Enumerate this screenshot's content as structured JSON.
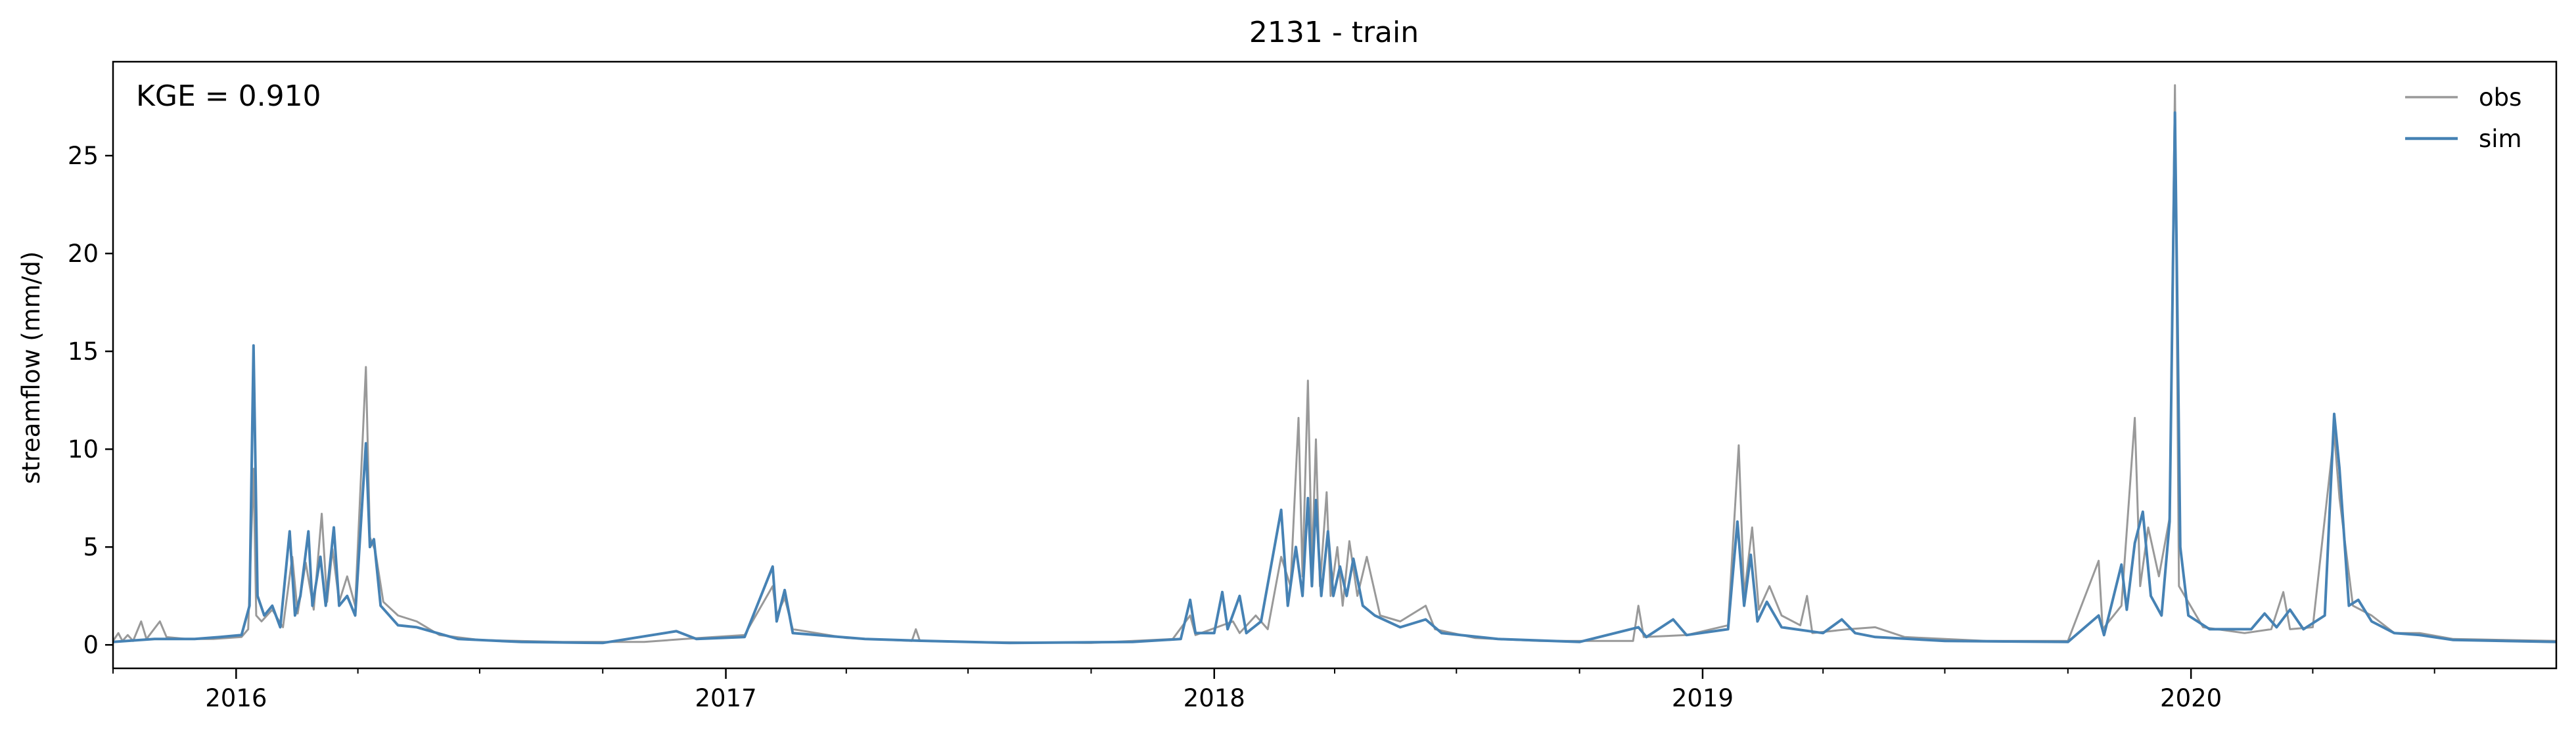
{
  "chart_data": {
    "type": "line",
    "title": "2131 - train",
    "xlabel": "",
    "ylabel": "streamflow (mm/d)",
    "annotation": "KGE = 0.910",
    "x_range": [
      "2015-10-01",
      "2020-09-30"
    ],
    "xlim": [
      "2015-10-01",
      "2020-09-30"
    ],
    "ylim": [
      -1.2,
      29.8
    ],
    "y_ticks": [
      0,
      5,
      10,
      15,
      20,
      25
    ],
    "x_ticks": [
      "2016",
      "2017",
      "2018",
      "2019",
      "2020"
    ],
    "x_tick_dates": [
      "2016-01-01",
      "2017-01-01",
      "2018-01-01",
      "2019-01-01",
      "2020-01-01"
    ],
    "grid": false,
    "legend_position": "top-right",
    "series": [
      {
        "name": "obs",
        "color": "#999999",
        "points": [
          [
            "2015-10-01",
            0.2
          ],
          [
            "2015-10-05",
            0.6
          ],
          [
            "2015-10-08",
            0.2
          ],
          [
            "2015-10-12",
            0.5
          ],
          [
            "2015-10-16",
            0.2
          ],
          [
            "2015-10-22",
            1.2
          ],
          [
            "2015-10-26",
            0.3
          ],
          [
            "2015-11-05",
            1.2
          ],
          [
            "2015-11-10",
            0.4
          ],
          [
            "2015-11-25",
            0.3
          ],
          [
            "2015-12-15",
            0.3
          ],
          [
            "2016-01-05",
            0.4
          ],
          [
            "2016-01-10",
            0.8
          ],
          [
            "2016-01-14",
            9.0
          ],
          [
            "2016-01-16",
            1.5
          ],
          [
            "2016-01-20",
            1.2
          ],
          [
            "2016-01-28",
            1.8
          ],
          [
            "2016-02-05",
            0.9
          ],
          [
            "2016-02-12",
            4.5
          ],
          [
            "2016-02-16",
            1.6
          ],
          [
            "2016-02-22",
            4.2
          ],
          [
            "2016-02-28",
            1.8
          ],
          [
            "2016-03-05",
            6.7
          ],
          [
            "2016-03-09",
            2.2
          ],
          [
            "2016-03-13",
            4.9
          ],
          [
            "2016-03-18",
            2.2
          ],
          [
            "2016-03-24",
            3.5
          ],
          [
            "2016-03-30",
            2.0
          ],
          [
            "2016-04-07",
            14.2
          ],
          [
            "2016-04-10",
            5.5
          ],
          [
            "2016-04-14",
            4.8
          ],
          [
            "2016-04-20",
            2.2
          ],
          [
            "2016-05-01",
            1.5
          ],
          [
            "2016-05-15",
            1.2
          ],
          [
            "2016-06-01",
            0.5
          ],
          [
            "2016-07-01",
            0.25
          ],
          [
            "2016-09-01",
            0.15
          ],
          [
            "2016-11-01",
            0.15
          ],
          [
            "2016-12-01",
            0.3
          ],
          [
            "2017-01-15",
            0.5
          ],
          [
            "2017-02-05",
            3.0
          ],
          [
            "2017-02-08",
            1.5
          ],
          [
            "2017-02-14",
            2.4
          ],
          [
            "2017-02-20",
            0.8
          ],
          [
            "2017-03-10",
            0.6
          ],
          [
            "2017-04-01",
            0.35
          ],
          [
            "2017-05-20",
            0.2
          ],
          [
            "2017-05-23",
            0.8
          ],
          [
            "2017-05-26",
            0.2
          ],
          [
            "2017-07-01",
            0.15
          ],
          [
            "2017-10-01",
            0.1
          ],
          [
            "2017-12-01",
            0.3
          ],
          [
            "2017-12-14",
            1.5
          ],
          [
            "2017-12-18",
            0.5
          ],
          [
            "2018-01-15",
            1.2
          ],
          [
            "2018-01-20",
            0.6
          ],
          [
            "2018-02-01",
            1.5
          ],
          [
            "2018-02-10",
            0.8
          ],
          [
            "2018-02-20",
            4.5
          ],
          [
            "2018-02-27",
            3.0
          ],
          [
            "2018-03-05",
            11.6
          ],
          [
            "2018-03-08",
            3.5
          ],
          [
            "2018-03-12",
            13.5
          ],
          [
            "2018-03-15",
            4.0
          ],
          [
            "2018-03-18",
            10.5
          ],
          [
            "2018-03-21",
            3.0
          ],
          [
            "2018-03-26",
            7.8
          ],
          [
            "2018-03-29",
            2.5
          ],
          [
            "2018-04-03",
            5.0
          ],
          [
            "2018-04-07",
            2.0
          ],
          [
            "2018-04-12",
            5.3
          ],
          [
            "2018-04-18",
            2.5
          ],
          [
            "2018-04-25",
            4.5
          ],
          [
            "2018-05-05",
            1.5
          ],
          [
            "2018-05-20",
            1.2
          ],
          [
            "2018-06-08",
            2.0
          ],
          [
            "2018-06-15",
            0.8
          ],
          [
            "2018-07-15",
            0.35
          ],
          [
            "2018-09-01",
            0.2
          ],
          [
            "2018-11-10",
            0.2
          ],
          [
            "2018-11-14",
            2.0
          ],
          [
            "2018-11-18",
            0.4
          ],
          [
            "2018-12-20",
            0.5
          ],
          [
            "2019-01-20",
            1.0
          ],
          [
            "2019-01-28",
            10.2
          ],
          [
            "2019-02-01",
            2.5
          ],
          [
            "2019-02-07",
            6.0
          ],
          [
            "2019-02-12",
            1.8
          ],
          [
            "2019-02-20",
            3.0
          ],
          [
            "2019-03-01",
            1.5
          ],
          [
            "2019-03-15",
            1.0
          ],
          [
            "2019-03-20",
            2.5
          ],
          [
            "2019-03-24",
            0.6
          ],
          [
            "2019-04-20",
            0.8
          ],
          [
            "2019-05-10",
            0.9
          ],
          [
            "2019-06-01",
            0.4
          ],
          [
            "2019-08-01",
            0.2
          ],
          [
            "2019-10-01",
            0.2
          ],
          [
            "2019-10-24",
            4.3
          ],
          [
            "2019-10-27",
            0.8
          ],
          [
            "2019-11-10",
            2.0
          ],
          [
            "2019-11-20",
            11.6
          ],
          [
            "2019-11-24",
            3.0
          ],
          [
            "2019-11-30",
            6.0
          ],
          [
            "2019-12-08",
            3.5
          ],
          [
            "2019-12-16",
            6.5
          ],
          [
            "2019-12-20",
            28.6
          ],
          [
            "2019-12-23",
            3.0
          ],
          [
            "2020-01-10",
            0.9
          ],
          [
            "2020-02-10",
            0.6
          ],
          [
            "2020-03-01",
            0.8
          ],
          [
            "2020-03-10",
            2.7
          ],
          [
            "2020-03-15",
            0.8
          ],
          [
            "2020-04-01",
            0.9
          ],
          [
            "2020-04-17",
            10.8
          ],
          [
            "2020-04-21",
            7.5
          ],
          [
            "2020-05-01",
            2.0
          ],
          [
            "2020-05-15",
            1.5
          ],
          [
            "2020-06-01",
            0.6
          ],
          [
            "2020-06-20",
            0.6
          ],
          [
            "2020-07-15",
            0.3
          ],
          [
            "2020-09-30",
            0.2
          ]
        ]
      },
      {
        "name": "sim",
        "color": "#4682b4",
        "points": [
          [
            "2015-10-01",
            0.15
          ],
          [
            "2015-11-01",
            0.3
          ],
          [
            "2015-12-01",
            0.3
          ],
          [
            "2015-12-20",
            0.4
          ],
          [
            "2016-01-05",
            0.5
          ],
          [
            "2016-01-11",
            2.0
          ],
          [
            "2016-01-14",
            15.3
          ],
          [
            "2016-01-17",
            2.5
          ],
          [
            "2016-01-22",
            1.5
          ],
          [
            "2016-01-28",
            2.0
          ],
          [
            "2016-02-03",
            0.9
          ],
          [
            "2016-02-10",
            5.8
          ],
          [
            "2016-02-14",
            1.5
          ],
          [
            "2016-02-18",
            2.5
          ],
          [
            "2016-02-24",
            5.8
          ],
          [
            "2016-02-27",
            2.0
          ],
          [
            "2016-03-04",
            4.5
          ],
          [
            "2016-03-08",
            2.0
          ],
          [
            "2016-03-14",
            6.0
          ],
          [
            "2016-03-18",
            2.0
          ],
          [
            "2016-03-24",
            2.5
          ],
          [
            "2016-03-30",
            1.5
          ],
          [
            "2016-04-07",
            10.3
          ],
          [
            "2016-04-10",
            5.0
          ],
          [
            "2016-04-13",
            5.4
          ],
          [
            "2016-04-18",
            2.0
          ],
          [
            "2016-05-01",
            1.0
          ],
          [
            "2016-05-15",
            0.9
          ],
          [
            "2016-06-15",
            0.3
          ],
          [
            "2016-08-01",
            0.15
          ],
          [
            "2016-10-01",
            0.1
          ],
          [
            "2016-11-25",
            0.7
          ],
          [
            "2016-12-10",
            0.3
          ],
          [
            "2017-01-15",
            0.4
          ],
          [
            "2017-02-05",
            4.0
          ],
          [
            "2017-02-08",
            1.2
          ],
          [
            "2017-02-14",
            2.8
          ],
          [
            "2017-02-20",
            0.6
          ],
          [
            "2017-03-10",
            0.5
          ],
          [
            "2017-04-15",
            0.3
          ],
          [
            "2017-06-01",
            0.2
          ],
          [
            "2017-08-01",
            0.1
          ],
          [
            "2017-11-01",
            0.15
          ],
          [
            "2017-12-07",
            0.3
          ],
          [
            "2017-12-14",
            2.3
          ],
          [
            "2017-12-18",
            0.6
          ],
          [
            "2018-01-01",
            0.6
          ],
          [
            "2018-01-07",
            2.7
          ],
          [
            "2018-01-11",
            0.8
          ],
          [
            "2018-01-20",
            2.5
          ],
          [
            "2018-01-25",
            0.6
          ],
          [
            "2018-02-05",
            1.2
          ],
          [
            "2018-02-20",
            6.9
          ],
          [
            "2018-02-25",
            2.0
          ],
          [
            "2018-03-03",
            5.0
          ],
          [
            "2018-03-08",
            2.5
          ],
          [
            "2018-03-12",
            7.5
          ],
          [
            "2018-03-15",
            3.0
          ],
          [
            "2018-03-18",
            7.4
          ],
          [
            "2018-03-22",
            2.5
          ],
          [
            "2018-03-27",
            5.8
          ],
          [
            "2018-03-31",
            2.5
          ],
          [
            "2018-04-05",
            4.0
          ],
          [
            "2018-04-10",
            2.5
          ],
          [
            "2018-04-15",
            4.4
          ],
          [
            "2018-04-22",
            2.0
          ],
          [
            "2018-05-01",
            1.5
          ],
          [
            "2018-05-20",
            0.9
          ],
          [
            "2018-06-08",
            1.3
          ],
          [
            "2018-06-20",
            0.6
          ],
          [
            "2018-08-01",
            0.3
          ],
          [
            "2018-10-01",
            0.15
          ],
          [
            "2018-11-14",
            0.9
          ],
          [
            "2018-11-20",
            0.4
          ],
          [
            "2018-12-10",
            1.3
          ],
          [
            "2018-12-20",
            0.5
          ],
          [
            "2019-01-20",
            0.8
          ],
          [
            "2019-01-27",
            6.3
          ],
          [
            "2019-02-01",
            2.0
          ],
          [
            "2019-02-06",
            4.6
          ],
          [
            "2019-02-11",
            1.2
          ],
          [
            "2019-02-18",
            2.2
          ],
          [
            "2019-03-01",
            0.9
          ],
          [
            "2019-04-01",
            0.6
          ],
          [
            "2019-04-15",
            1.3
          ],
          [
            "2019-04-25",
            0.6
          ],
          [
            "2019-05-10",
            0.4
          ],
          [
            "2019-07-01",
            0.2
          ],
          [
            "2019-10-01",
            0.15
          ],
          [
            "2019-10-24",
            1.5
          ],
          [
            "2019-10-28",
            0.5
          ],
          [
            "2019-11-10",
            4.1
          ],
          [
            "2019-11-14",
            1.8
          ],
          [
            "2019-11-20",
            5.2
          ],
          [
            "2019-11-26",
            6.8
          ],
          [
            "2019-12-02",
            2.5
          ],
          [
            "2019-12-10",
            1.5
          ],
          [
            "2019-12-16",
            6.3
          ],
          [
            "2019-12-20",
            27.2
          ],
          [
            "2019-12-24",
            5.0
          ],
          [
            "2019-12-30",
            1.5
          ],
          [
            "2020-01-15",
            0.8
          ],
          [
            "2020-02-15",
            0.8
          ],
          [
            "2020-02-25",
            1.6
          ],
          [
            "2020-03-05",
            0.9
          ],
          [
            "2020-03-15",
            1.8
          ],
          [
            "2020-03-25",
            0.8
          ],
          [
            "2020-04-10",
            1.5
          ],
          [
            "2020-04-17",
            11.8
          ],
          [
            "2020-04-21",
            9.0
          ],
          [
            "2020-04-28",
            2.0
          ],
          [
            "2020-05-05",
            2.3
          ],
          [
            "2020-05-15",
            1.2
          ],
          [
            "2020-06-01",
            0.6
          ],
          [
            "2020-06-20",
            0.5
          ],
          [
            "2020-07-15",
            0.25
          ],
          [
            "2020-09-30",
            0.15
          ]
        ]
      }
    ]
  }
}
